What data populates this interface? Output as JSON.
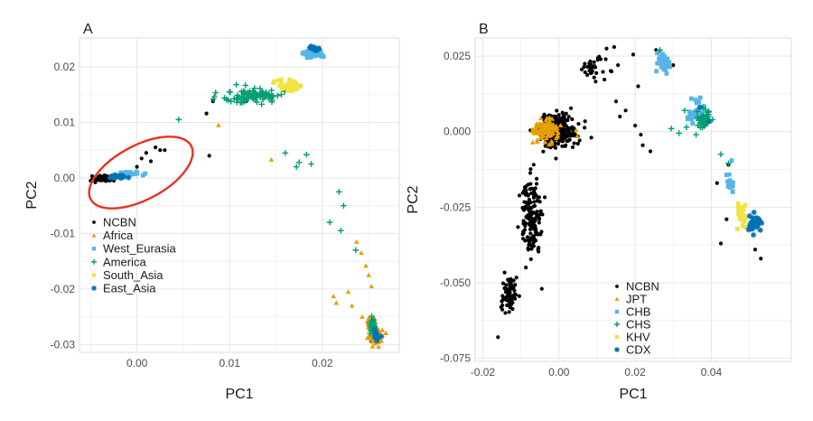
{
  "chart_data": [
    {
      "type": "scatter",
      "panel_label": "A",
      "xlabel": "PC1",
      "ylabel": "PC2",
      "xlim": [
        -0.0062,
        0.0283
      ],
      "ylim": [
        -0.0314,
        0.0252
      ],
      "xticks": [
        0.0,
        0.01,
        0.02
      ],
      "xtick_labels": [
        "0.00",
        "0.01",
        "0.02"
      ],
      "yticks": [
        -0.03,
        -0.02,
        -0.01,
        0.0,
        0.01,
        0.02
      ],
      "ytick_labels": [
        "-0.03",
        "-0.02",
        "-0.01",
        "0.00",
        "0.01",
        "0.02"
      ],
      "grid": true,
      "legend_position": "inside-left",
      "annotation": "red ellipse around the NCBN cluster",
      "series": [
        {
          "name": "NCBN",
          "marker": "circle",
          "color": "#000000",
          "clusters": [
            {
              "center": [
                -0.0035,
                -0.0001
              ],
              "spread": [
                0.001,
                0.0004
              ],
              "count": 110
            }
          ],
          "points": [
            [
              -0.005,
              -0.0005
            ],
            [
              -0.0045,
              -0.0008
            ],
            [
              -0.004,
              0.0004
            ],
            [
              0.0,
              0.002
            ],
            [
              0.0005,
              0.0035
            ],
            [
              0.001,
              0.0045
            ],
            [
              0.0015,
              0.003
            ],
            [
              0.002,
              0.0055
            ],
            [
              0.0025,
              0.005
            ],
            [
              0.003,
              0.005
            ],
            [
              0.0075,
              0.0116
            ],
            [
              0.0082,
              0.0138
            ],
            [
              0.0118,
              0.0138
            ],
            [
              0.0078,
              0.004
            ],
            [
              0.0253,
              -0.0295
            ]
          ]
        },
        {
          "name": "Africa",
          "marker": "triangle",
          "color": "#E69F00",
          "clusters": [
            {
              "center": [
                0.0258,
                -0.0285
              ],
              "spread": [
                0.0006,
                0.0013
              ],
              "count": 60
            },
            {
              "center": [
                0.0252,
                -0.026
              ],
              "spread": [
                0.0005,
                0.0012
              ],
              "count": 25
            }
          ],
          "points": [
            [
              0.0237,
              -0.0115
            ],
            [
              0.0242,
              -0.0135
            ],
            [
              0.0247,
              -0.0158
            ],
            [
              0.025,
              -0.0175
            ],
            [
              0.0253,
              -0.0195
            ],
            [
              0.0228,
              -0.0205
            ],
            [
              0.0212,
              -0.0213
            ],
            [
              0.0243,
              -0.025
            ],
            [
              0.0232,
              -0.023
            ],
            [
              0.0145,
              0.0033
            ],
            [
              0.0088,
              0.0095
            ],
            [
              0.0215,
              -0.0225
            ]
          ]
        },
        {
          "name": "West_Eurasia",
          "marker": "square",
          "color": "#56B4E9",
          "clusters": [
            {
              "center": [
                0.0191,
                0.0224
              ],
              "spread": [
                0.0009,
                0.0006
              ],
              "count": 70
            },
            {
              "center": [
                -0.0008,
                0.0007
              ],
              "spread": [
                0.0012,
                0.0004
              ],
              "count": 28
            }
          ],
          "points": []
        },
        {
          "name": "America",
          "marker": "plus",
          "color": "#009E73",
          "clusters": [
            {
              "center": [
                0.0125,
                0.0148
              ],
              "spread": [
                0.003,
                0.0013
              ],
              "count": 95
            },
            {
              "center": [
                0.0255,
                -0.0265
              ],
              "spread": [
                0.0004,
                0.0015
              ],
              "count": 28
            }
          ],
          "points": [
            [
              0.0045,
              0.0105
            ],
            [
              0.016,
              0.0045
            ],
            [
              0.0172,
              0.002
            ],
            [
              0.0183,
              0.0042
            ],
            [
              0.0188,
              0.0025
            ],
            [
              0.0175,
              0.0028
            ],
            [
              0.0218,
              -0.0025
            ],
            [
              0.0223,
              -0.005
            ],
            [
              0.0208,
              -0.008
            ],
            [
              0.022,
              -0.0095
            ],
            [
              0.0236,
              -0.013
            ]
          ]
        },
        {
          "name": "South_Asia",
          "marker": "square",
          "color": "#F0E442",
          "clusters": [
            {
              "center": [
                0.0165,
                0.0166
              ],
              "spread": [
                0.0012,
                0.0009
              ],
              "count": 60
            }
          ],
          "points": []
        },
        {
          "name": "East_Asia",
          "marker": "star",
          "color": "#0072B2",
          "clusters": [
            {
              "center": [
                0.0193,
                0.0233
              ],
              "spread": [
                0.0005,
                0.0004
              ],
              "count": 14
            },
            {
              "center": [
                -0.0022,
                0.0002
              ],
              "spread": [
                0.0008,
                0.0003
              ],
              "count": 22
            },
            {
              "center": [
                0.0258,
                -0.0285
              ],
              "spread": [
                0.0004,
                0.0007
              ],
              "count": 10
            }
          ],
          "points": []
        }
      ]
    },
    {
      "type": "scatter",
      "panel_label": "B",
      "xlabel": "PC1",
      "ylabel": "PC2",
      "xlim": [
        -0.022,
        0.061
      ],
      "ylim": [
        -0.076,
        0.031
      ],
      "xticks": [
        -0.02,
        0.0,
        0.02,
        0.04
      ],
      "xtick_labels": [
        "-0.02",
        "0.00",
        "0.02",
        "0.04"
      ],
      "yticks": [
        -0.075,
        -0.05,
        -0.025,
        0.0,
        0.025
      ],
      "ytick_labels": [
        "-0.075",
        "-0.050",
        "-0.025",
        "0.000",
        "0.025"
      ],
      "grid": true,
      "legend_position": "bottom-center",
      "series": [
        {
          "name": "NCBN",
          "marker": "circle",
          "color": "#000000",
          "clusters": [
            {
              "center": [
                -0.0003,
                0.0005
              ],
              "spread": [
                0.0045,
                0.0052
              ],
              "count": 220
            },
            {
              "center": [
                -0.0072,
                -0.028
              ],
              "spread": [
                0.0028,
                0.011
              ],
              "count": 150
            },
            {
              "center": [
                -0.013,
                -0.054
              ],
              "spread": [
                0.0018,
                0.0055
              ],
              "count": 80
            },
            {
              "center": [
                0.009,
                0.021
              ],
              "spread": [
                0.003,
                0.003
              ],
              "count": 35
            }
          ],
          "points": [
            [
              0.0125,
              0.0275
            ],
            [
              0.0145,
              0.028
            ],
            [
              0.0155,
              0.022
            ],
            [
              0.015,
              0.01
            ],
            [
              0.0175,
              0.007
            ],
            [
              0.016,
              0.005
            ],
            [
              0.02,
              0.002
            ],
            [
              0.0215,
              -0.001
            ],
            [
              0.022,
              -0.0045
            ],
            [
              0.024,
              -0.0065
            ],
            [
              0.0208,
              0.015
            ],
            [
              0.0195,
              0.0255
            ],
            [
              0.0085,
              -0.002
            ],
            [
              -0.016,
              -0.068
            ],
            [
              -0.0045,
              -0.052
            ],
            [
              -0.0055,
              -0.039
            ],
            [
              0.044,
              -0.029
            ],
            [
              0.0415,
              -0.017
            ],
            [
              0.0425,
              -0.037
            ],
            [
              0.0515,
              -0.039
            ],
            [
              0.053,
              -0.042
            ],
            [
              0.0445,
              -0.011
            ],
            [
              0.0255,
              0.027
            ],
            [
              0.03,
              0.022
            ]
          ]
        },
        {
          "name": "JPT",
          "marker": "triangle",
          "color": "#E69F00",
          "clusters": [
            {
              "center": [
                -0.0035,
                0.0005
              ],
              "spread": [
                0.0028,
                0.0032
              ],
              "count": 130
            }
          ],
          "points": [
            [
              0.0045,
              0.0005
            ],
            [
              0.0048,
              -0.0015
            ]
          ]
        },
        {
          "name": "CHB",
          "marker": "square",
          "color": "#56B4E9",
          "clusters": [
            {
              "center": [
                0.0275,
                0.023
              ],
              "spread": [
                0.0014,
                0.0032
              ],
              "count": 40
            },
            {
              "center": [
                0.036,
                0.007
              ],
              "spread": [
                0.002,
                0.0032
              ],
              "count": 35
            },
            {
              "center": [
                0.0455,
                -0.016
              ],
              "spread": [
                0.0014,
                0.0045
              ],
              "count": 12
            }
          ],
          "points": []
        },
        {
          "name": "CHS",
          "marker": "plus",
          "color": "#009E73",
          "clusters": [
            {
              "center": [
                0.038,
                0.004
              ],
              "spread": [
                0.0016,
                0.003
              ],
              "count": 45
            }
          ],
          "points": [
            [
              0.0265,
              0.027
            ],
            [
              0.0335,
              0.0015
            ],
            [
              0.0295,
              0.001
            ],
            [
              0.0315,
              -0.0005
            ],
            [
              0.036,
              -0.001
            ],
            [
              0.0425,
              -0.0075
            ],
            [
              0.0445,
              -0.0105
            ],
            [
              0.033,
              0.007
            ]
          ]
        },
        {
          "name": "KHV",
          "marker": "square",
          "color": "#F0E442",
          "clusters": [
            {
              "center": [
                0.048,
                -0.0275
              ],
              "spread": [
                0.0012,
                0.0042
              ],
              "count": 28
            }
          ],
          "points": []
        },
        {
          "name": "CDX",
          "marker": "star",
          "color": "#0072B2",
          "clusters": [
            {
              "center": [
                0.0515,
                -0.0305
              ],
              "spread": [
                0.0016,
                0.0022
              ],
              "count": 40
            }
          ],
          "points": [
            [
              0.037,
              0.008
            ],
            [
              0.0395,
              0.0035
            ]
          ]
        }
      ]
    }
  ]
}
